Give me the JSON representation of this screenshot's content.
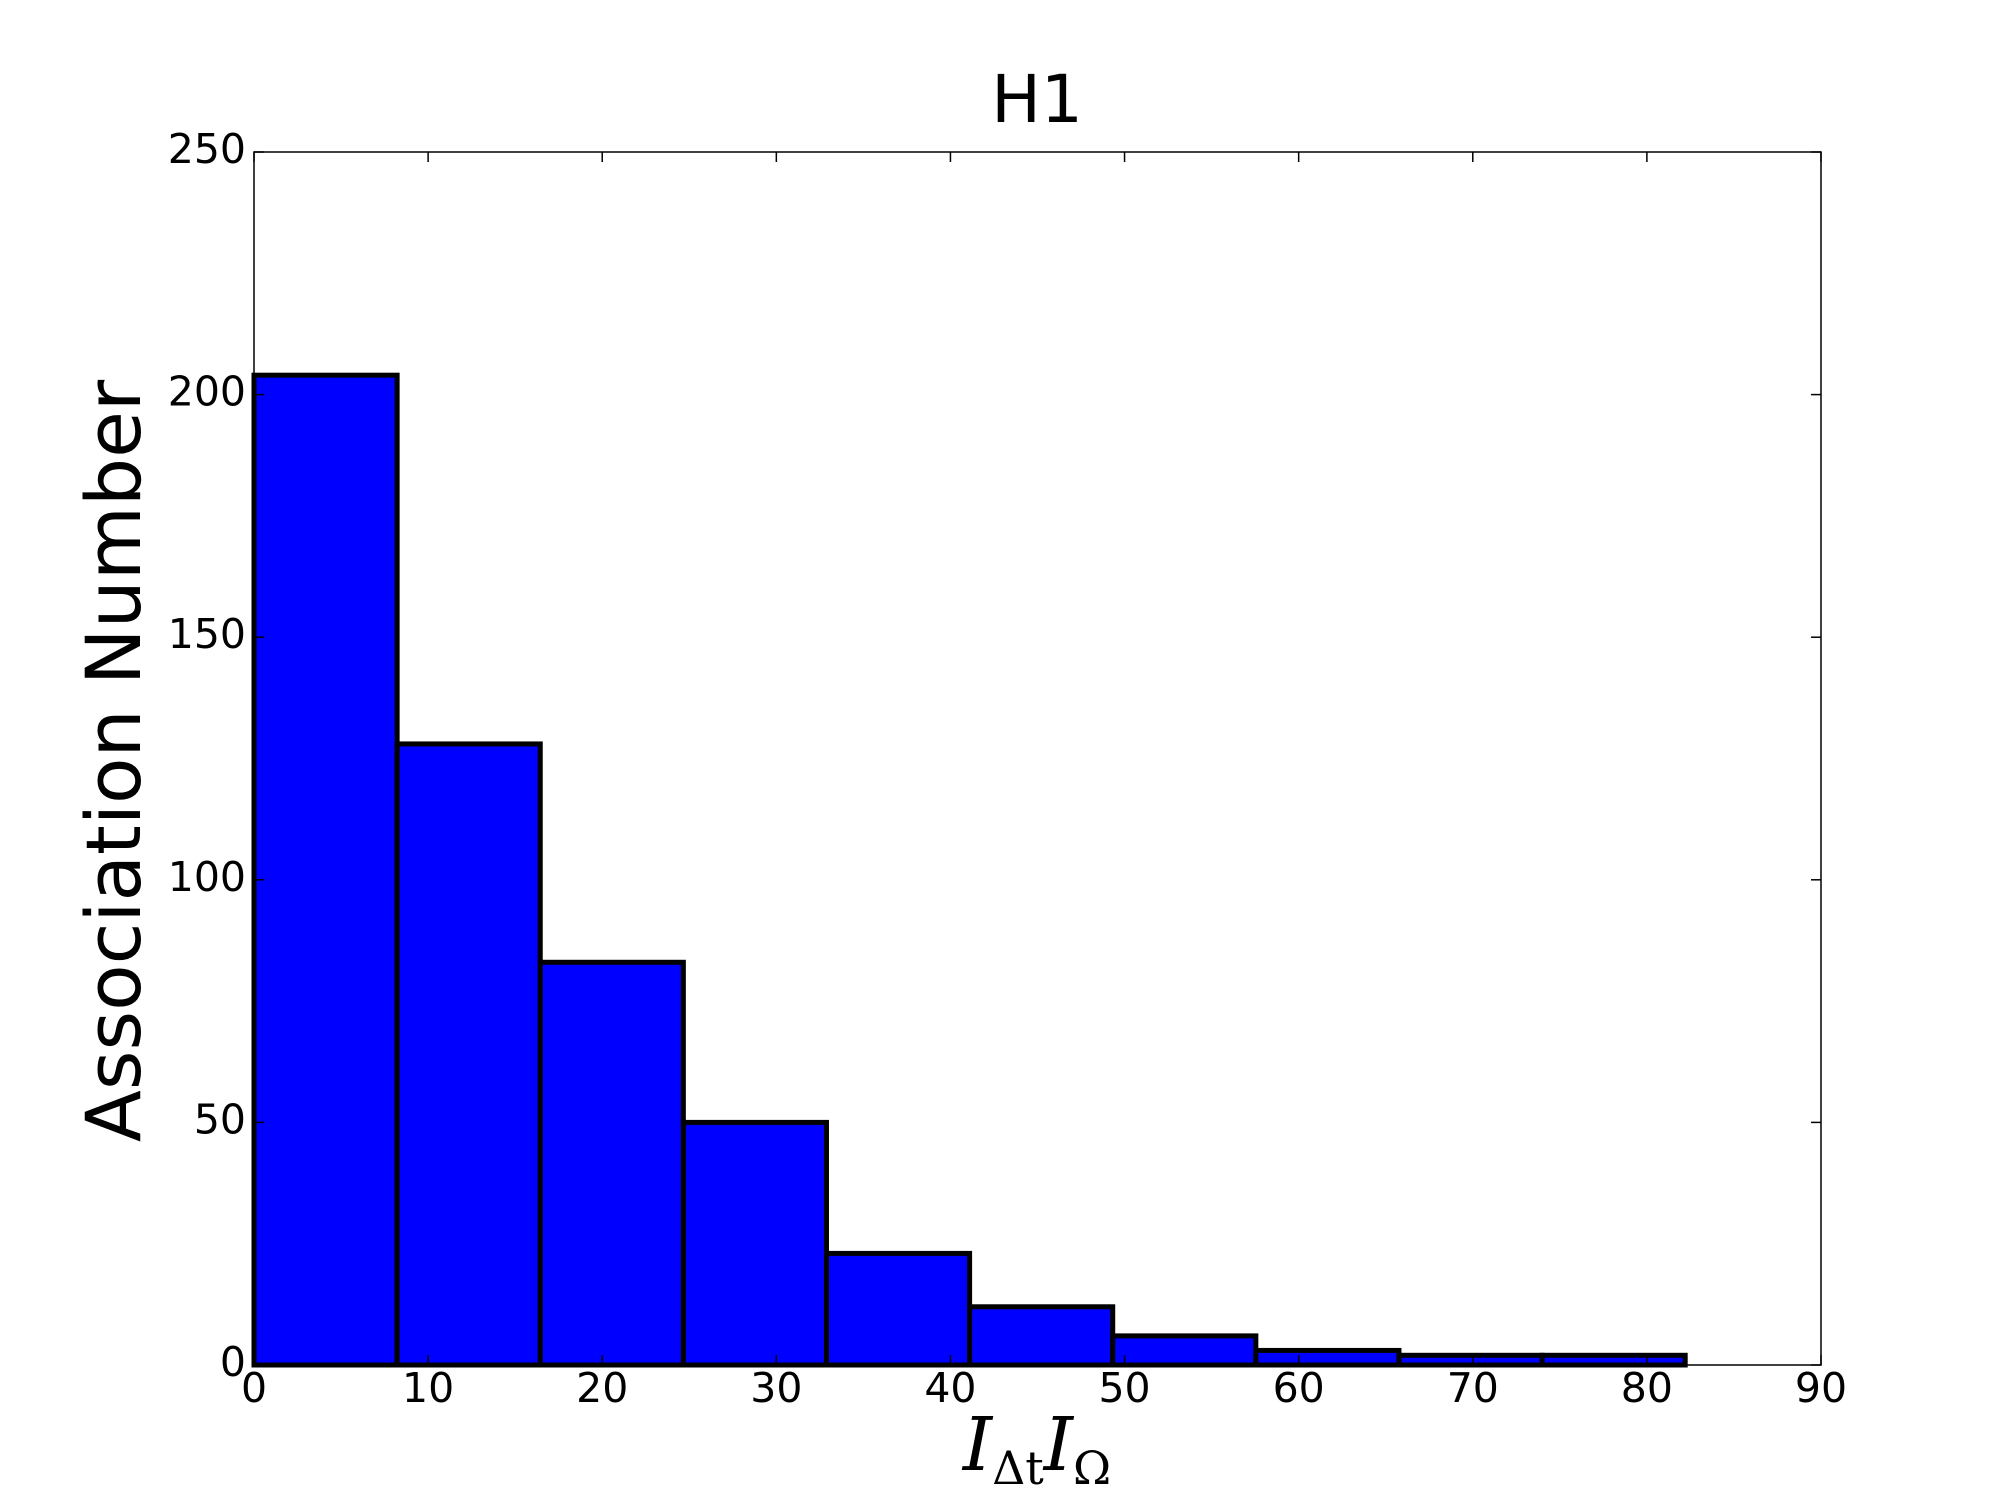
{
  "chart_data": {
    "type": "histogram",
    "title": "H1",
    "xlabel": [
      "I",
      "Δt",
      "I",
      "Ω"
    ],
    "ylabel": "Association Number",
    "bins": [
      0,
      8.22,
      16.44,
      24.66,
      32.88,
      41.1,
      49.32,
      57.54,
      65.76,
      73.98,
      82.2
    ],
    "values": [
      204,
      128,
      83,
      50,
      23,
      12,
      6,
      3,
      2,
      2
    ],
    "color": "#0000ff",
    "edgecolor": "#000000",
    "xlim": [
      0,
      90
    ],
    "xticks": [
      0,
      10,
      20,
      30,
      40,
      50,
      60,
      70,
      80,
      90
    ],
    "ylim": [
      0,
      250
    ],
    "yticks": [
      0,
      50,
      100,
      150,
      200,
      250
    ],
    "grid": false
  }
}
